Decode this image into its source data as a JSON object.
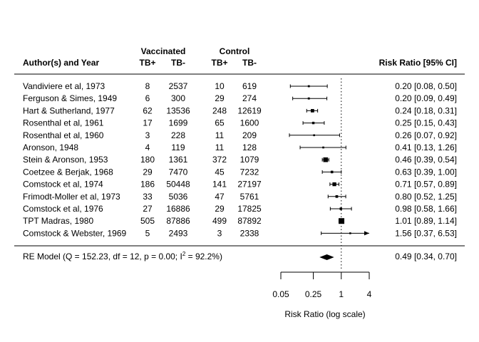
{
  "chart_data": {
    "type": "forest",
    "headers": {
      "study": "Author(s) and Year",
      "group1": "Vaccinated",
      "group2": "Control",
      "tb_pos": "TB+",
      "tb_neg": "TB-",
      "effect": "Risk Ratio [95% CI]"
    },
    "studies": [
      {
        "label": "Vandiviere et al, 1973",
        "v_pos": "8",
        "v_neg": "2537",
        "c_pos": "10",
        "c_neg": "619",
        "rr": 0.2,
        "lo": 0.08,
        "hi": 0.5,
        "ci_text": "0.20 [0.08, 0.50]"
      },
      {
        "label": "Ferguson & Simes, 1949",
        "v_pos": "6",
        "v_neg": "300",
        "c_pos": "29",
        "c_neg": "274",
        "rr": 0.2,
        "lo": 0.09,
        "hi": 0.49,
        "ci_text": "0.20 [0.09, 0.49]"
      },
      {
        "label": "Hart & Sutherland, 1977",
        "v_pos": "62",
        "v_neg": "13536",
        "c_pos": "248",
        "c_neg": "12619",
        "rr": 0.24,
        "lo": 0.18,
        "hi": 0.31,
        "ci_text": "0.24 [0.18, 0.31]"
      },
      {
        "label": "Rosenthal et al, 1961",
        "v_pos": "17",
        "v_neg": "1699",
        "c_pos": "65",
        "c_neg": "1600",
        "rr": 0.25,
        "lo": 0.15,
        "hi": 0.43,
        "ci_text": "0.25 [0.15, 0.43]"
      },
      {
        "label": "Rosenthal et al, 1960",
        "v_pos": "3",
        "v_neg": "228",
        "c_pos": "11",
        "c_neg": "209",
        "rr": 0.26,
        "lo": 0.07,
        "hi": 0.92,
        "ci_text": "0.26 [0.07, 0.92]"
      },
      {
        "label": "Aronson, 1948",
        "v_pos": "4",
        "v_neg": "119",
        "c_pos": "11",
        "c_neg": "128",
        "rr": 0.41,
        "lo": 0.13,
        "hi": 1.26,
        "ci_text": "0.41 [0.13, 1.26]"
      },
      {
        "label": "Stein & Aronson, 1953",
        "v_pos": "180",
        "v_neg": "1361",
        "c_pos": "372",
        "c_neg": "1079",
        "rr": 0.46,
        "lo": 0.39,
        "hi": 0.54,
        "ci_text": "0.46 [0.39, 0.54]"
      },
      {
        "label": "Coetzee & Berjak, 1968",
        "v_pos": "29",
        "v_neg": "7470",
        "c_pos": "45",
        "c_neg": "7232",
        "rr": 0.63,
        "lo": 0.39,
        "hi": 1.0,
        "ci_text": "0.63 [0.39, 1.00]"
      },
      {
        "label": "Comstock et al, 1974",
        "v_pos": "186",
        "v_neg": "50448",
        "c_pos": "141",
        "c_neg": "27197",
        "rr": 0.71,
        "lo": 0.57,
        "hi": 0.89,
        "ci_text": "0.71 [0.57, 0.89]"
      },
      {
        "label": "Frimodt-Moller et al, 1973",
        "v_pos": "33",
        "v_neg": "5036",
        "c_pos": "47",
        "c_neg": "5761",
        "rr": 0.8,
        "lo": 0.52,
        "hi": 1.25,
        "ci_text": "0.80 [0.52, 1.25]"
      },
      {
        "label": "Comstock et al, 1976",
        "v_pos": "27",
        "v_neg": "16886",
        "c_pos": "29",
        "c_neg": "17825",
        "rr": 0.98,
        "lo": 0.58,
        "hi": 1.66,
        "ci_text": "0.98 [0.58, 1.66]"
      },
      {
        "label": "TPT Madras, 1980",
        "v_pos": "505",
        "v_neg": "87886",
        "c_pos": "499",
        "c_neg": "87892",
        "rr": 1.01,
        "lo": 0.89,
        "hi": 1.14,
        "ci_text": "1.01 [0.89, 1.14]"
      },
      {
        "label": "Comstock & Webster, 1969",
        "v_pos": "5",
        "v_neg": "2493",
        "c_pos": "3",
        "c_neg": "2338",
        "rr": 1.56,
        "lo": 0.37,
        "hi": 6.53,
        "ci_text": "1.56 [0.37, 6.53]"
      }
    ],
    "summary": {
      "label_pre": "RE Model (Q = 152.23, df = 12, p = 0.00; I",
      "label_sup": "2",
      "label_post": " = 92.2%)",
      "rr": 0.49,
      "lo": 0.34,
      "hi": 0.7,
      "ci_text": "0.49 [0.34, 0.70]"
    },
    "x_axis": {
      "label": "Risk Ratio (log scale)",
      "scale": "log",
      "ticks": [
        0.05,
        0.25,
        1,
        4
      ],
      "tick_labels": [
        "0.05",
        "0.25",
        "1",
        "4"
      ]
    },
    "reference_line": 1
  }
}
